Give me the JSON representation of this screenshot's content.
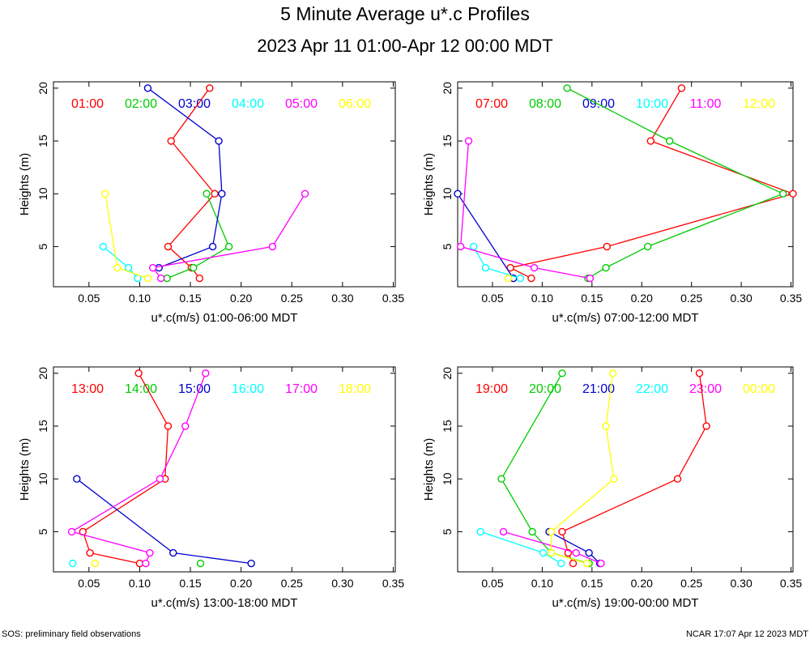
{
  "title": "5 Minute Average u*.c Profiles",
  "subtitle": "2023 Apr 11 01:00-Apr 12 00:00 MDT",
  "footer_left": "SOS: preliminary field observations",
  "footer_right": "NCAR 17:07 Apr 12 2023 MDT",
  "chart_data": [
    {
      "type": "line",
      "xlabel": "u*.c(m/s) 01:00-06:00 MDT",
      "ylabel": "Heights (m)",
      "xlim": [
        0.015,
        0.352
      ],
      "ylim": [
        1.2,
        20.6
      ],
      "xticks": [
        "0.05",
        "0.10",
        "0.15",
        "0.20",
        "0.25",
        "0.30",
        "0.35"
      ],
      "yticks": [
        "5",
        "10",
        "15",
        "20"
      ],
      "series": [
        {
          "name": "01:00",
          "color": "#ff0000",
          "points": [
            [
              0.169,
              20
            ],
            [
              0.131,
              15
            ],
            [
              0.174,
              10
            ],
            [
              0.128,
              5
            ],
            [
              0.151,
              3
            ],
            [
              0.159,
              2
            ]
          ]
        },
        {
          "name": "02:00",
          "color": "#00cc00",
          "points": [
            [
              0.166,
              10
            ],
            [
              0.188,
              5
            ],
            [
              0.153,
              3
            ],
            [
              0.127,
              2
            ]
          ]
        },
        {
          "name": "03:00",
          "color": "#0000cc",
          "points": [
            [
              0.108,
              20
            ],
            [
              0.178,
              15
            ],
            [
              0.181,
              10
            ],
            [
              0.172,
              5
            ],
            [
              0.119,
              3
            ]
          ]
        },
        {
          "name": "04:00",
          "color": "#00ffff",
          "points": [
            [
              0.064,
              5
            ],
            [
              0.089,
              3
            ],
            [
              0.098,
              2
            ]
          ]
        },
        {
          "name": "05:00",
          "color": "#ff00ff",
          "points": [
            [
              0.263,
              10
            ],
            [
              0.231,
              5
            ],
            [
              0.113,
              3
            ],
            [
              0.121,
              2
            ]
          ]
        },
        {
          "name": "06:00",
          "color": "#ffff00",
          "points": [
            [
              0.066,
              10
            ],
            [
              0.078,
              3
            ],
            [
              0.108,
              2
            ]
          ]
        }
      ]
    },
    {
      "type": "line",
      "xlabel": "u*.c(m/s) 07:00-12:00 MDT",
      "ylabel": "Heights (m)",
      "xlim": [
        0.015,
        0.352
      ],
      "ylim": [
        1.2,
        20.6
      ],
      "xticks": [
        "0.05",
        "0.10",
        "0.15",
        "0.20",
        "0.25",
        "0.30",
        "0.35"
      ],
      "yticks": [
        "5",
        "10",
        "15",
        "20"
      ],
      "series": [
        {
          "name": "07:00",
          "color": "#ff0000",
          "points": [
            [
              0.24,
              20
            ],
            [
              0.209,
              15
            ],
            [
              0.352,
              10
            ],
            [
              0.165,
              5
            ],
            [
              0.068,
              3
            ],
            [
              0.089,
              2
            ]
          ]
        },
        {
          "name": "08:00",
          "color": "#00cc00",
          "points": [
            [
              0.125,
              20
            ],
            [
              0.228,
              15
            ],
            [
              0.342,
              10
            ],
            [
              0.206,
              5
            ],
            [
              0.164,
              3
            ],
            [
              0.146,
              2
            ]
          ]
        },
        {
          "name": "09:00",
          "color": "#0000cc",
          "points": [
            [
              0.015,
              10
            ],
            [
              0.071,
              2
            ]
          ]
        },
        {
          "name": "10:00",
          "color": "#00ffff",
          "points": [
            [
              0.031,
              5
            ],
            [
              0.043,
              3
            ],
            [
              0.078,
              2
            ]
          ]
        },
        {
          "name": "11:00",
          "color": "#ff00ff",
          "points": [
            [
              0.026,
              15
            ],
            [
              0.018,
              5
            ],
            [
              0.092,
              3
            ],
            [
              0.148,
              2
            ]
          ]
        },
        {
          "name": "12:00",
          "color": "#ffff00",
          "points": [
            [
              0.066,
              2
            ]
          ]
        }
      ]
    },
    {
      "type": "line",
      "xlabel": "u*.c(m/s) 13:00-18:00 MDT",
      "ylabel": "Heights (m)",
      "xlim": [
        0.015,
        0.352
      ],
      "ylim": [
        1.2,
        20.6
      ],
      "xticks": [
        "0.05",
        "0.10",
        "0.15",
        "0.20",
        "0.25",
        "0.30",
        "0.35"
      ],
      "yticks": [
        "5",
        "10",
        "15",
        "20"
      ],
      "series": [
        {
          "name": "13:00",
          "color": "#ff0000",
          "points": [
            [
              0.099,
              20
            ],
            [
              0.128,
              15
            ],
            [
              0.125,
              10
            ],
            [
              0.044,
              5
            ],
            [
              0.051,
              3
            ],
            [
              0.1,
              2
            ]
          ]
        },
        {
          "name": "14:00",
          "color": "#00cc00",
          "points": [
            [
              0.16,
              2
            ]
          ]
        },
        {
          "name": "15:00",
          "color": "#0000cc",
          "points": [
            [
              0.038,
              10
            ],
            [
              0.133,
              3
            ],
            [
              0.21,
              2
            ]
          ]
        },
        {
          "name": "16:00",
          "color": "#00ffff",
          "points": [
            [
              0.034,
              2
            ]
          ]
        },
        {
          "name": "17:00",
          "color": "#ff00ff",
          "points": [
            [
              0.165,
              20
            ],
            [
              0.145,
              15
            ],
            [
              0.12,
              10
            ],
            [
              0.033,
              5
            ],
            [
              0.11,
              3
            ],
            [
              0.106,
              2
            ]
          ]
        },
        {
          "name": "18:00",
          "color": "#ffff00",
          "points": [
            [
              0.056,
              2
            ]
          ]
        }
      ]
    },
    {
      "type": "line",
      "xlabel": "u*.c(m/s) 19:00-00:00 MDT",
      "ylabel": "Heights (m)",
      "xlim": [
        0.015,
        0.352
      ],
      "ylim": [
        1.2,
        20.6
      ],
      "xticks": [
        "0.05",
        "0.10",
        "0.15",
        "0.20",
        "0.25",
        "0.30",
        "0.35"
      ],
      "yticks": [
        "5",
        "10",
        "15",
        "20"
      ],
      "series": [
        {
          "name": "19:00",
          "color": "#ff0000",
          "points": [
            [
              0.258,
              20
            ],
            [
              0.265,
              15
            ],
            [
              0.236,
              10
            ],
            [
              0.12,
              5
            ],
            [
              0.126,
              3
            ],
            [
              0.131,
              2
            ]
          ]
        },
        {
          "name": "20:00",
          "color": "#00cc00",
          "points": [
            [
              0.12,
              20
            ],
            [
              0.059,
              10
            ],
            [
              0.09,
              5
            ],
            [
              0.109,
              3
            ],
            [
              0.147,
              2
            ]
          ]
        },
        {
          "name": "21:00",
          "color": "#0000cc",
          "points": [
            [
              0.107,
              5
            ],
            [
              0.147,
              3
            ],
            [
              0.158,
              2
            ]
          ]
        },
        {
          "name": "22:00",
          "color": "#00ffff",
          "points": [
            [
              0.038,
              5
            ],
            [
              0.101,
              3
            ],
            [
              0.119,
              2
            ]
          ]
        },
        {
          "name": "23:00",
          "color": "#ff00ff",
          "points": [
            [
              0.061,
              5
            ],
            [
              0.134,
              3
            ],
            [
              0.159,
              2
            ]
          ]
        },
        {
          "name": "00:00",
          "color": "#ffff00",
          "points": [
            [
              0.171,
              20
            ],
            [
              0.164,
              15
            ],
            [
              0.172,
              10
            ],
            [
              0.109,
              5
            ],
            [
              0.109,
              3
            ],
            [
              0.145,
              2
            ]
          ]
        }
      ]
    }
  ]
}
